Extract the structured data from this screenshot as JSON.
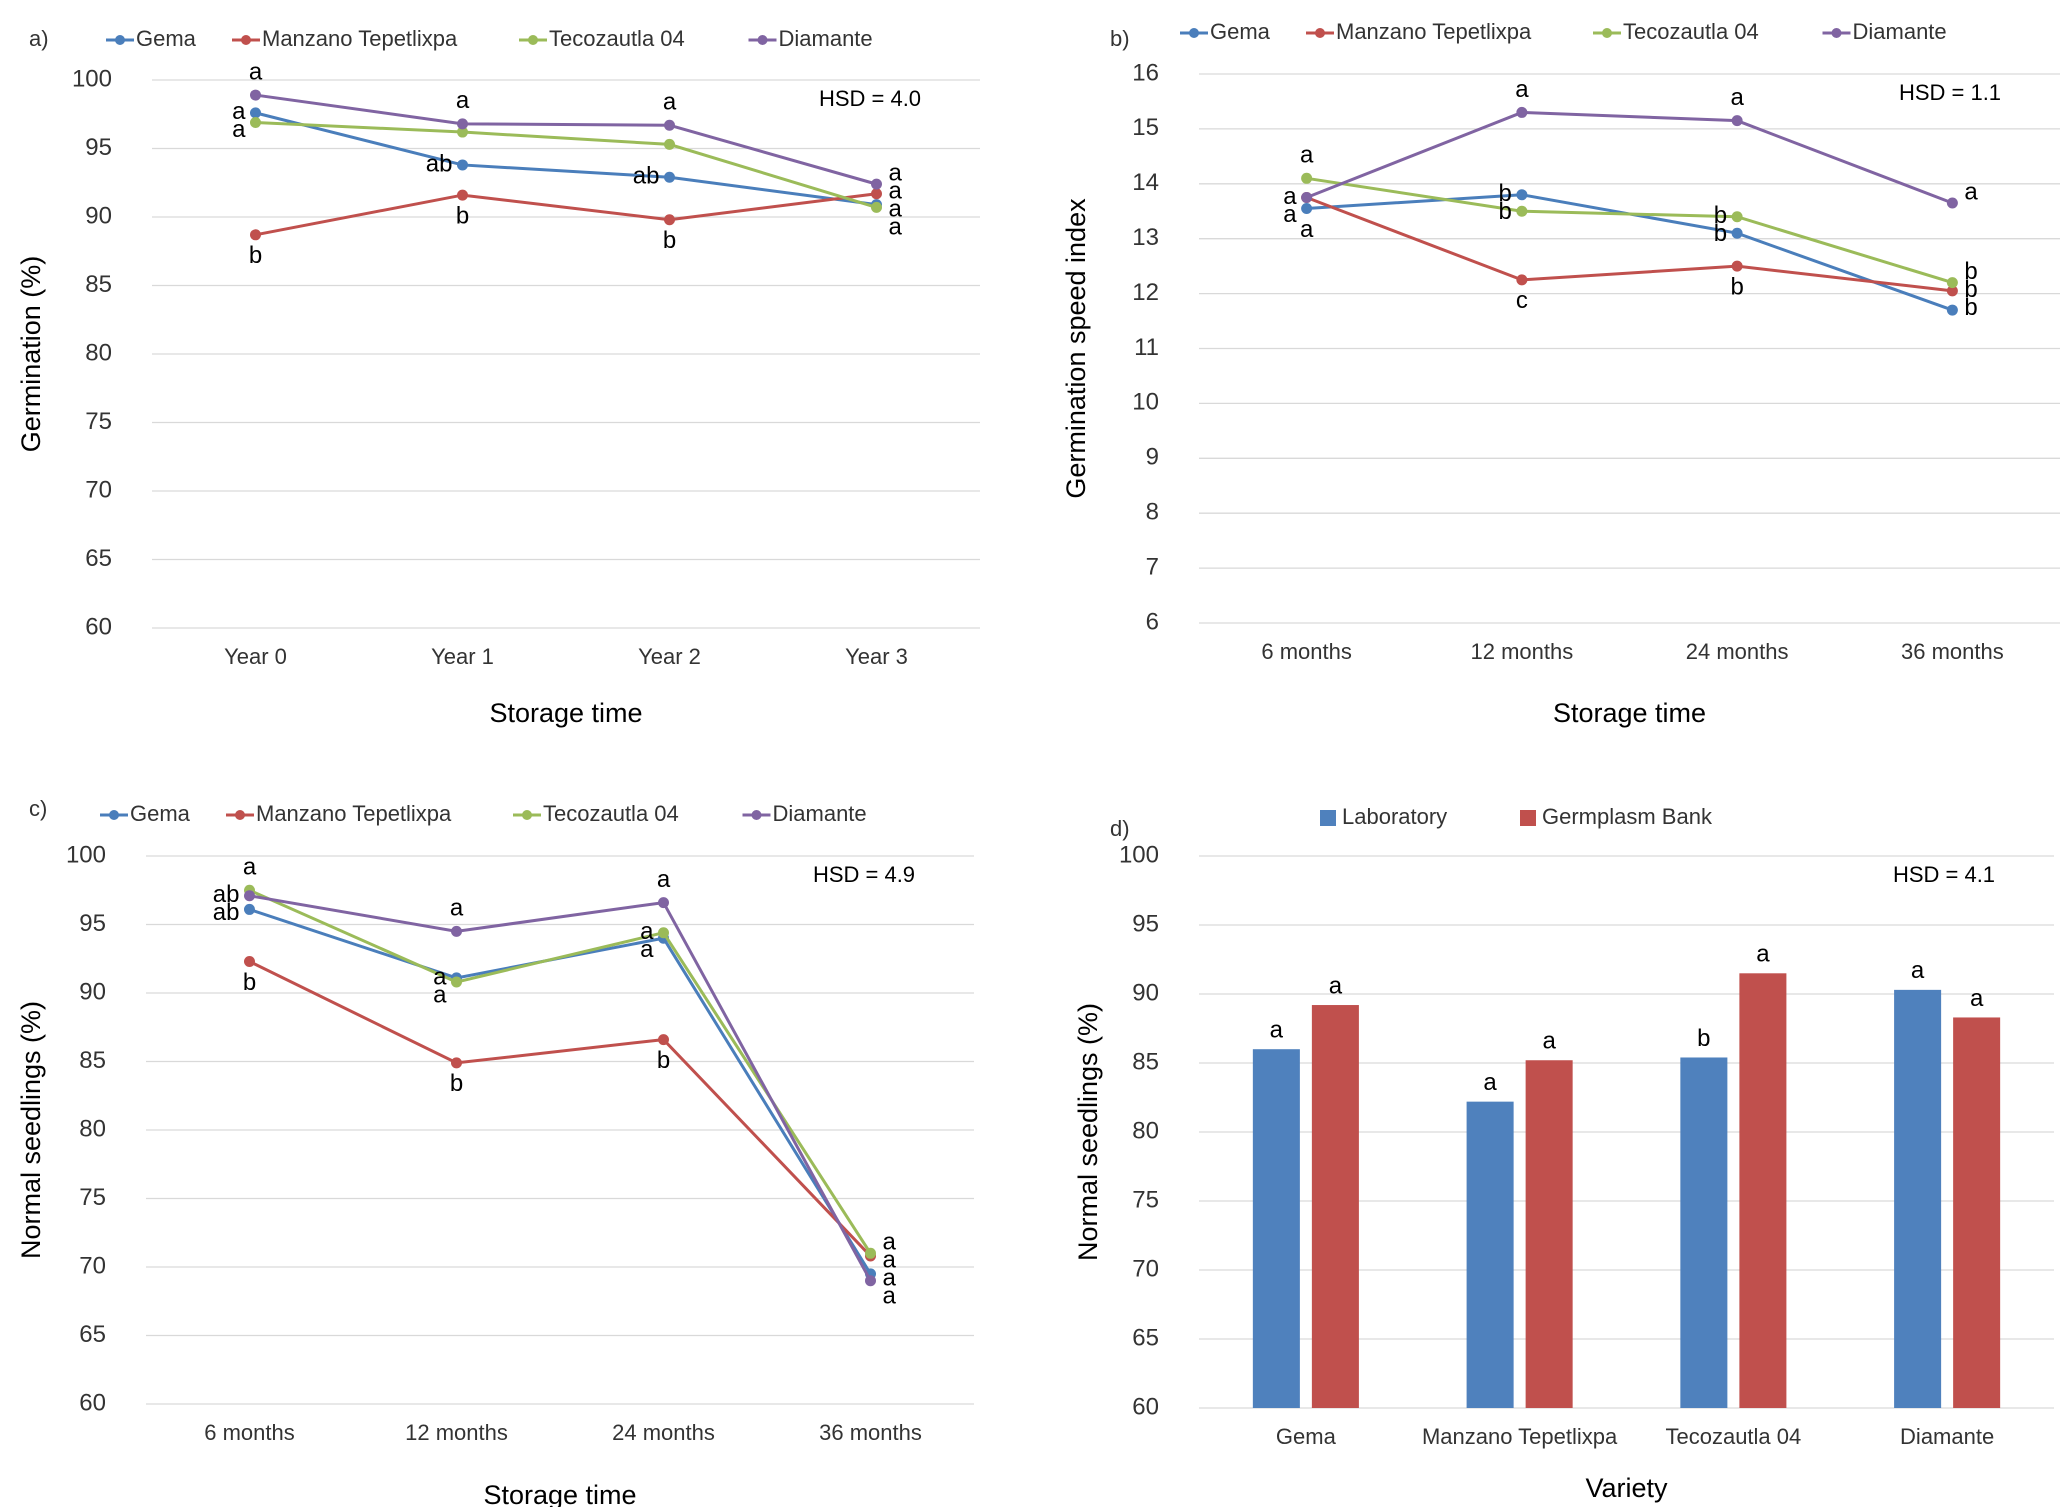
{
  "chart_data": [
    {
      "type": "line",
      "panel": "a)",
      "annotation": "HSD = 4.0",
      "x_label": "Storage time",
      "y_label": "Germination (%)",
      "categories": [
        "Year 0",
        "Year 1",
        "Year 2",
        "Year 3"
      ],
      "ylim": [
        60,
        100
      ],
      "yticks": [
        60,
        65,
        70,
        75,
        80,
        85,
        90,
        95,
        100
      ],
      "grid": true,
      "series": [
        {
          "name": "Gema",
          "color": "#4a7ebb",
          "values": [
            97.6,
            93.8,
            92.9,
            90.9
          ],
          "letters": [
            "a",
            "ab",
            "ab",
            "a"
          ]
        },
        {
          "name": "Manzano Tepetlixpa",
          "color": "#c0504d",
          "values": [
            88.7,
            91.6,
            89.8,
            91.7
          ],
          "letters": [
            "b",
            "b",
            "b",
            "a"
          ]
        },
        {
          "name": "Tecozautla 04",
          "color": "#9bbb59",
          "values": [
            96.9,
            96.2,
            95.3,
            90.7
          ],
          "letters": [
            "a",
            null,
            null,
            "a"
          ]
        },
        {
          "name": "Diamante",
          "color": "#8064a2",
          "values": [
            98.9,
            96.8,
            96.7,
            92.4
          ],
          "letters": [
            "a",
            "a",
            "a",
            "a"
          ]
        }
      ]
    },
    {
      "type": "line",
      "panel": "b)",
      "annotation": "HSD = 1.1",
      "x_label": "Storage time",
      "y_label": "Germination speed index",
      "categories": [
        "6 months",
        "12 months",
        "24 months",
        "36 months"
      ],
      "ylim": [
        6,
        16
      ],
      "yticks": [
        6,
        7,
        8,
        9,
        10,
        11,
        12,
        13,
        14,
        15,
        16
      ],
      "grid": true,
      "series": [
        {
          "name": "Gema",
          "color": "#4a7ebb",
          "values": [
            13.55,
            13.8,
            13.1,
            11.7
          ],
          "letters": [
            "a",
            "b",
            "b",
            "b"
          ]
        },
        {
          "name": "Manzano Tepetlixpa",
          "color": "#c0504d",
          "values": [
            13.75,
            12.25,
            12.5,
            12.05
          ],
          "letters": [
            "a",
            "c",
            "b",
            "b"
          ]
        },
        {
          "name": "Tecozautla 04",
          "color": "#9bbb59",
          "values": [
            14.1,
            13.5,
            13.4,
            12.2
          ],
          "letters": [
            "a",
            "b",
            "b",
            "b"
          ]
        },
        {
          "name": "Diamante",
          "color": "#8064a2",
          "values": [
            13.75,
            15.3,
            15.15,
            13.65
          ],
          "letters": [
            "a",
            "a",
            "a",
            "a"
          ]
        }
      ]
    },
    {
      "type": "line",
      "panel": "c)",
      "annotation": "HSD = 4.9",
      "x_label": "Storage time",
      "y_label": "Normal seedlings (%)",
      "categories": [
        "6 months",
        "12 months",
        "24 months",
        "36 months"
      ],
      "ylim": [
        60,
        100
      ],
      "yticks": [
        60,
        65,
        70,
        75,
        80,
        85,
        90,
        95,
        100
      ],
      "grid": true,
      "series": [
        {
          "name": "Gema",
          "color": "#4a7ebb",
          "values": [
            96.1,
            91.1,
            94.0,
            69.5
          ],
          "letters": [
            "ab",
            "a",
            "a",
            "a"
          ]
        },
        {
          "name": "Manzano Tepetlixpa",
          "color": "#c0504d",
          "values": [
            92.3,
            84.9,
            86.6,
            70.8
          ],
          "letters": [
            "b",
            "b",
            "b",
            "a"
          ]
        },
        {
          "name": "Tecozautla 04",
          "color": "#9bbb59",
          "values": [
            97.5,
            90.8,
            94.4,
            71.0
          ],
          "letters": [
            "a",
            "a",
            "a",
            "a"
          ]
        },
        {
          "name": "Diamante",
          "color": "#8064a2",
          "values": [
            97.1,
            94.5,
            96.6,
            69.0
          ],
          "letters": [
            "ab",
            "a",
            "a",
            "a"
          ]
        }
      ]
    },
    {
      "type": "bar",
      "panel": "d)",
      "annotation": "HSD = 4.1",
      "x_label": "Variety",
      "y_label": "Normal seedlings (%)",
      "categories": [
        "Gema",
        "Manzano Tepetlixpa",
        "Tecozautla 04",
        "Diamante"
      ],
      "ylim": [
        60,
        100
      ],
      "yticks": [
        60,
        65,
        70,
        75,
        80,
        85,
        90,
        95,
        100
      ],
      "grid": true,
      "series": [
        {
          "name": "Laboratory",
          "color": "#4f81bd",
          "values": [
            86.0,
            82.2,
            85.4,
            90.3
          ],
          "letters": [
            "a",
            "a",
            "b",
            "a"
          ]
        },
        {
          "name": "Germplasm Bank",
          "color": "#c0504d",
          "values": [
            89.2,
            85.2,
            91.5,
            88.3
          ],
          "letters": [
            "a",
            "a",
            "a",
            "a"
          ]
        }
      ]
    }
  ]
}
